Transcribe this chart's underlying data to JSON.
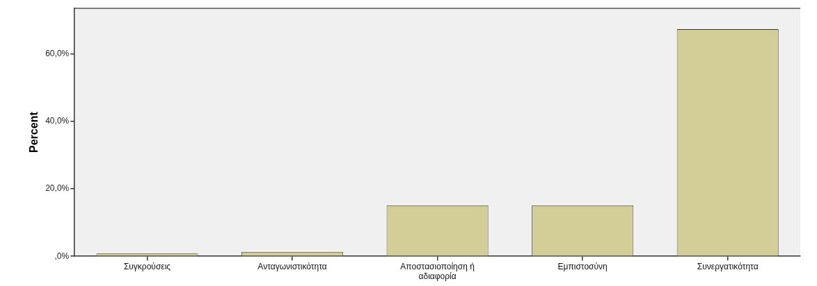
{
  "chart_data": {
    "type": "bar",
    "ylabel": "Percent",
    "categories": [
      "Συγκρούσεις",
      "Ανταγωνιστικότητα",
      "Αποστασιοποίηση ή αδιαφορία",
      "Εμπιστοσύνη",
      "Συνεργατικότητα"
    ],
    "values": [
      0.8,
      1.3,
      15.1,
      15.1,
      67.4
    ],
    "color": "#d3ce98",
    "ylim": [
      0,
      73.6
    ],
    "yticks": [
      {
        "value": 0,
        "label": ",0%"
      },
      {
        "value": 20,
        "label": "20,0%"
      },
      {
        "value": 40,
        "label": "40,0%"
      },
      {
        "value": 60,
        "label": "60,0%"
      }
    ],
    "grid": false,
    "legend": false
  }
}
